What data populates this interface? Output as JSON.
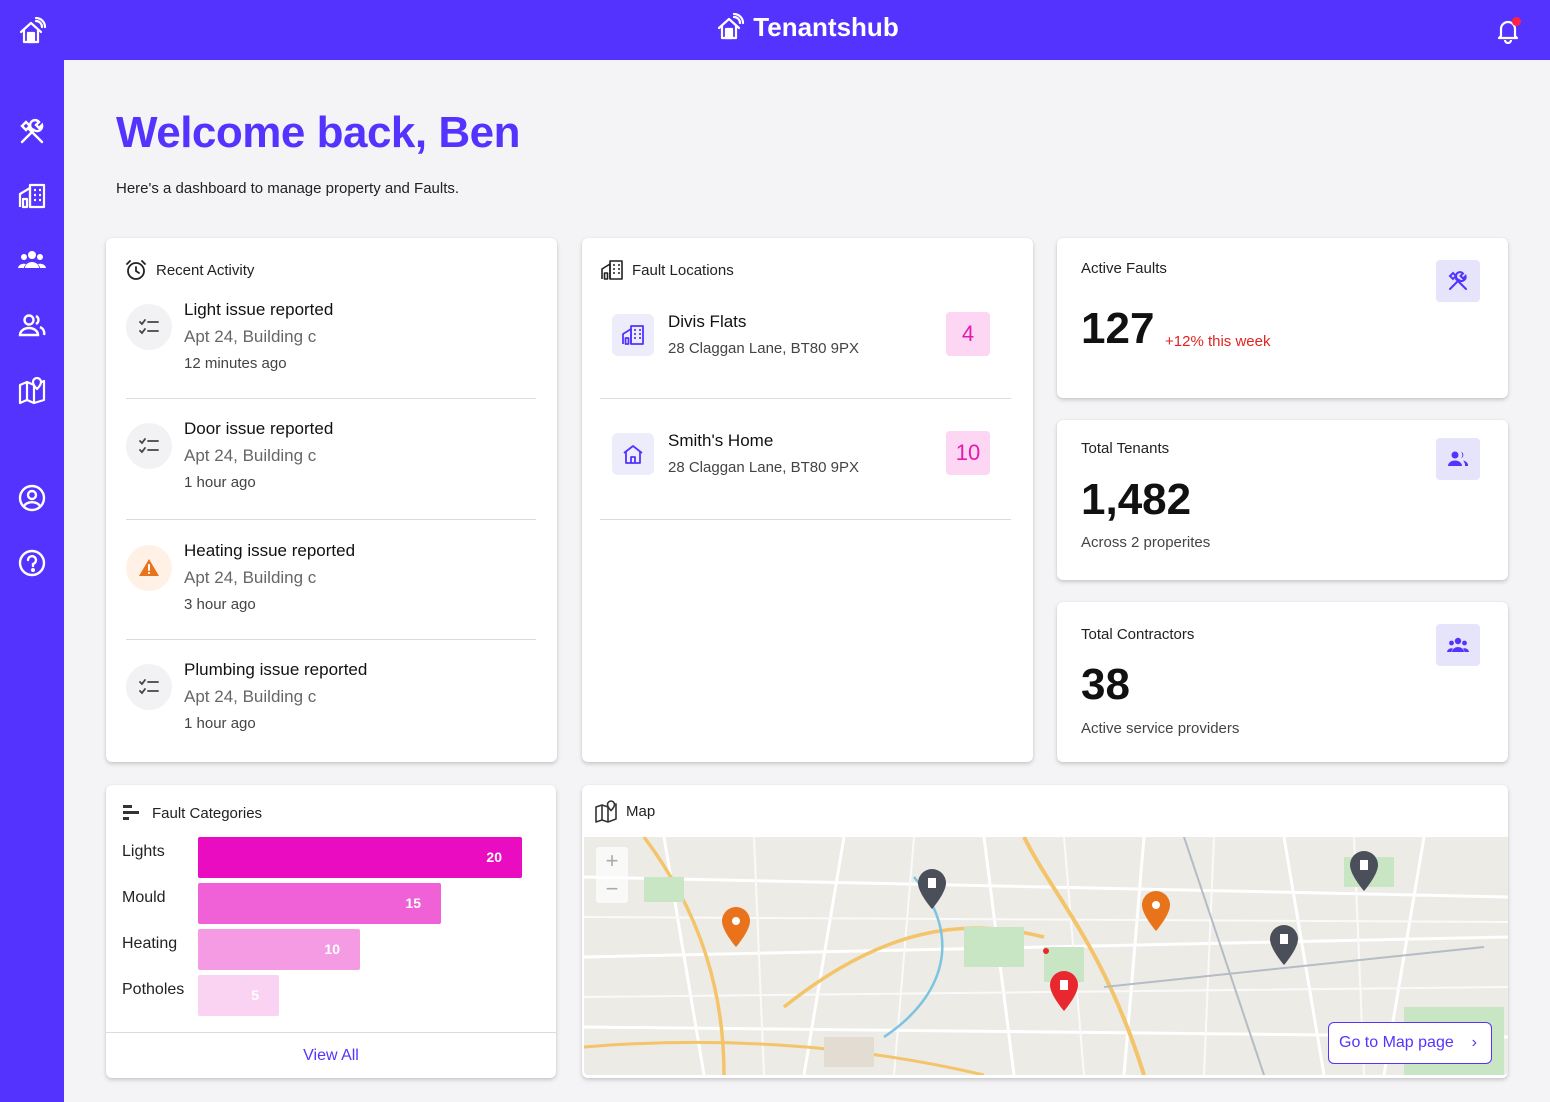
{
  "app": {
    "name": "Tenantshub"
  },
  "header": {
    "welcome": "Welcome back, Ben",
    "subtitle": "Here's a dashboard to manage property and Faults."
  },
  "sidebar": {
    "items": [
      {
        "icon": "faults-tools-icon"
      },
      {
        "icon": "properties-building-icon"
      },
      {
        "icon": "contractors-group-icon"
      },
      {
        "icon": "tenants-users-icon"
      },
      {
        "icon": "map-icon"
      },
      {
        "icon": "account-icon"
      },
      {
        "icon": "help-icon"
      }
    ]
  },
  "recent_activity": {
    "title": "Recent Activity",
    "items": [
      {
        "title": "Light issue reported",
        "location": "Apt 24, Building c",
        "time": "12 minutes ago",
        "icon": "checklist-icon"
      },
      {
        "title": "Door issue reported",
        "location": "Apt 24, Building c",
        "time": "1 hour ago",
        "icon": "checklist-icon"
      },
      {
        "title": "Heating issue reported",
        "location": "Apt 24, Building c",
        "time": "3 hour ago",
        "icon": "warning-icon"
      },
      {
        "title": "Plumbing issue reported",
        "location": "Apt 24, Building c",
        "time": "1 hour ago",
        "icon": "checklist-icon"
      }
    ]
  },
  "fault_locations": {
    "title": "Fault Locations",
    "items": [
      {
        "name": "Divis Flats",
        "address": "28 Claggan Lane, BT80 9PX",
        "count": "4",
        "icon": "building-icon"
      },
      {
        "name": "Smith's Home",
        "address": "28 Claggan Lane, BT80 9PX",
        "count": "10",
        "icon": "home-icon"
      }
    ]
  },
  "stats": {
    "active_faults": {
      "label": "Active Faults",
      "value": "127",
      "trend": "+12% this week"
    },
    "total_tenants": {
      "label": "Total Tenants",
      "value": "1,482",
      "sub": "Across 2 properites"
    },
    "total_contractors": {
      "label": "Total Contractors",
      "value": "38",
      "sub": "Active service providers"
    }
  },
  "fault_categories": {
    "title": "Fault Categories",
    "view_all": "View All"
  },
  "chart_data": {
    "type": "bar",
    "orientation": "horizontal",
    "categories": [
      "Lights",
      "Mould",
      "Heating",
      "Potholes"
    ],
    "values": [
      20,
      15,
      10,
      5
    ],
    "colors": [
      "#ea0cc0",
      "#f060d6",
      "#f59be3",
      "#fbd3f2"
    ]
  },
  "map": {
    "title": "Map",
    "button": "Go to Map page",
    "zoom_in": "+",
    "zoom_out": "−"
  },
  "colors": {
    "brand": "#5533ff",
    "accent_pink": "#e41ab0",
    "trend_red": "#e02424"
  }
}
